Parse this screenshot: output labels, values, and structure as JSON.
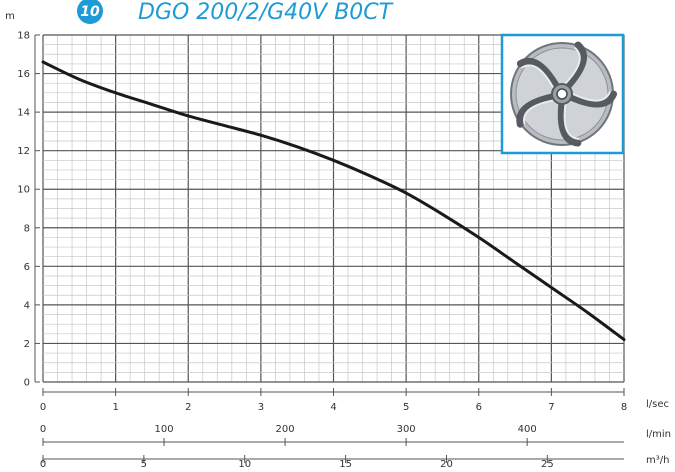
{
  "header": {
    "badge_number": "10",
    "model": "DGO 200/2/G40V B0CT",
    "accent_color": "#1e9ad6"
  },
  "inset": {
    "image": "impeller-icon",
    "border_color": "#1e9ad6"
  },
  "chart_data": {
    "type": "line",
    "title": "",
    "ylabel": "m",
    "ylim": [
      0,
      18
    ],
    "y_ticks": [
      "0",
      "2",
      "4",
      "6",
      "8",
      "10",
      "12",
      "14",
      "16",
      "18"
    ],
    "xlim": [
      0,
      8
    ],
    "grid": true,
    "x_axes": [
      {
        "unit": "l/sec",
        "max": 8,
        "ticks": [
          "0",
          "1",
          "2",
          "3",
          "4",
          "5",
          "6",
          "7",
          "8"
        ],
        "tick_values": [
          0,
          1,
          2,
          3,
          4,
          5,
          6,
          7,
          8
        ]
      },
      {
        "unit": "l/min",
        "max": 480,
        "ticks": [
          "0",
          "100",
          "200",
          "300",
          "400"
        ],
        "tick_values": [
          0,
          100,
          200,
          300,
          400
        ]
      },
      {
        "unit": "m³/h",
        "max": 28.8,
        "ticks": [
          "0",
          "5",
          "10",
          "15",
          "20",
          "25"
        ],
        "tick_values": [
          0,
          5,
          10,
          15,
          20,
          25
        ]
      }
    ],
    "series": [
      {
        "color": "#1a1a1a",
        "x": [
          0,
          0.5,
          1,
          1.5,
          2,
          2.5,
          3,
          3.5,
          4,
          4.5,
          5,
          5.5,
          6,
          6.5,
          7,
          7.5,
          8
        ],
        "y": [
          16.6,
          15.7,
          15.0,
          14.4,
          13.8,
          13.3,
          12.8,
          12.2,
          11.5,
          10.7,
          9.8,
          8.7,
          7.5,
          6.2,
          4.9,
          3.6,
          2.2
        ]
      }
    ]
  }
}
